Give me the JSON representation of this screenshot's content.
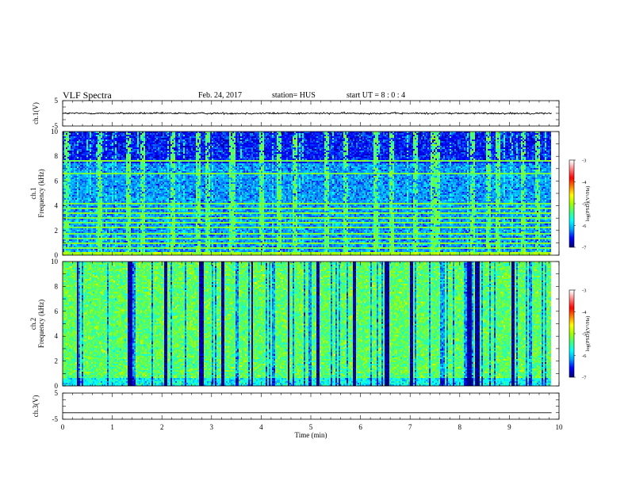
{
  "header": {
    "title": "VLF Spectra",
    "date": "Feb. 24, 2017",
    "station": "station= HUS",
    "start_ut": "start UT =  8 : 0 : 4"
  },
  "colors": {
    "colormap": [
      "#000080",
      "#0000ff",
      "#00a0ff",
      "#00ffff",
      "#40ff80",
      "#a0ff00",
      "#ffff00",
      "#ff8000",
      "#ff0000",
      "#ff8080",
      "#ffffff"
    ],
    "waveform": "#000000",
    "background": "#ffffff"
  },
  "chart_data": [
    {
      "type": "line",
      "panel": "ch1-waveform",
      "ylabel": "ch.1(V)",
      "ylim": [
        -5,
        5
      ],
      "yticks": [
        "5",
        "-5"
      ],
      "xlim": [
        0,
        10
      ],
      "signal_level": 0,
      "signal_amplitude": 0.6,
      "data_end_min": 9.85
    },
    {
      "type": "heatmap",
      "panel": "ch1-spectrogram",
      "ylabel_top": "ch.1",
      "ylabel": "Frequency (kHz)",
      "ylim": [
        0,
        10
      ],
      "yticks": [
        "0",
        "2",
        "4",
        "6",
        "8",
        "10"
      ],
      "xlim": [
        0,
        10
      ],
      "data_end_min": 9.85,
      "colorbar": {
        "label": "log(PSD)(V²/Hz)",
        "range": [
          -7,
          -3
        ],
        "ticks": [
          "-3",
          "-4",
          "-5",
          "-6",
          "-7"
        ]
      },
      "base_log_psd": -6.2,
      "horizontal_lines_khz": [
        0.5,
        0.9,
        1.3,
        1.7,
        2.2,
        2.6,
        3.0,
        3.4,
        3.8,
        4.2,
        6.6,
        7.6
      ],
      "horizontal_lines_log_psd": -5.2,
      "vertical_bursts_min": [
        0.05,
        0.75,
        1.32,
        1.6,
        2.2,
        2.7,
        2.9,
        3.38,
        3.43,
        3.98,
        4.35,
        4.65,
        5.3,
        5.7,
        6.3,
        6.6,
        7.1,
        7.45,
        7.55,
        8.25,
        8.55,
        8.75,
        9.25,
        9.55
      ],
      "vertical_bursts_log_psd": -5.3
    },
    {
      "type": "heatmap",
      "panel": "ch2-spectrogram",
      "ylabel_top": "ch.2",
      "ylabel": "Frequency (kHz)",
      "ylim": [
        0,
        10
      ],
      "yticks": [
        "0",
        "2",
        "4",
        "6",
        "8",
        "10"
      ],
      "xlim": [
        0,
        10
      ],
      "data_end_min": 9.85,
      "colorbar": {
        "label": "log(PSD)(V²/Hz)",
        "range": [
          -7,
          -3
        ],
        "ticks": [
          "-3",
          "-4",
          "-5",
          "-6",
          "-7"
        ]
      },
      "base_log_psd": -5.3,
      "dark_bands_min": [
        0.3,
        1.3,
        2.05,
        2.75,
        3.2,
        3.8,
        4.55,
        5.1,
        5.85,
        6.5,
        7.0,
        8.15,
        8.3,
        9.05
      ],
      "dark_bands_log_psd": -6.9
    },
    {
      "type": "line",
      "panel": "ch3-waveform",
      "ylabel": "ch.3(V)",
      "ylim": [
        -5,
        5
      ],
      "yticks": [
        "5",
        "-5"
      ],
      "xlim": [
        0,
        10
      ],
      "signal_level": -2.5,
      "signal_amplitude": 0,
      "data_end_min": 9.85,
      "xlabel": "Time (min)",
      "xticks": [
        "0",
        "1",
        "2",
        "3",
        "4",
        "5",
        "6",
        "7",
        "8",
        "9",
        "10"
      ]
    }
  ]
}
